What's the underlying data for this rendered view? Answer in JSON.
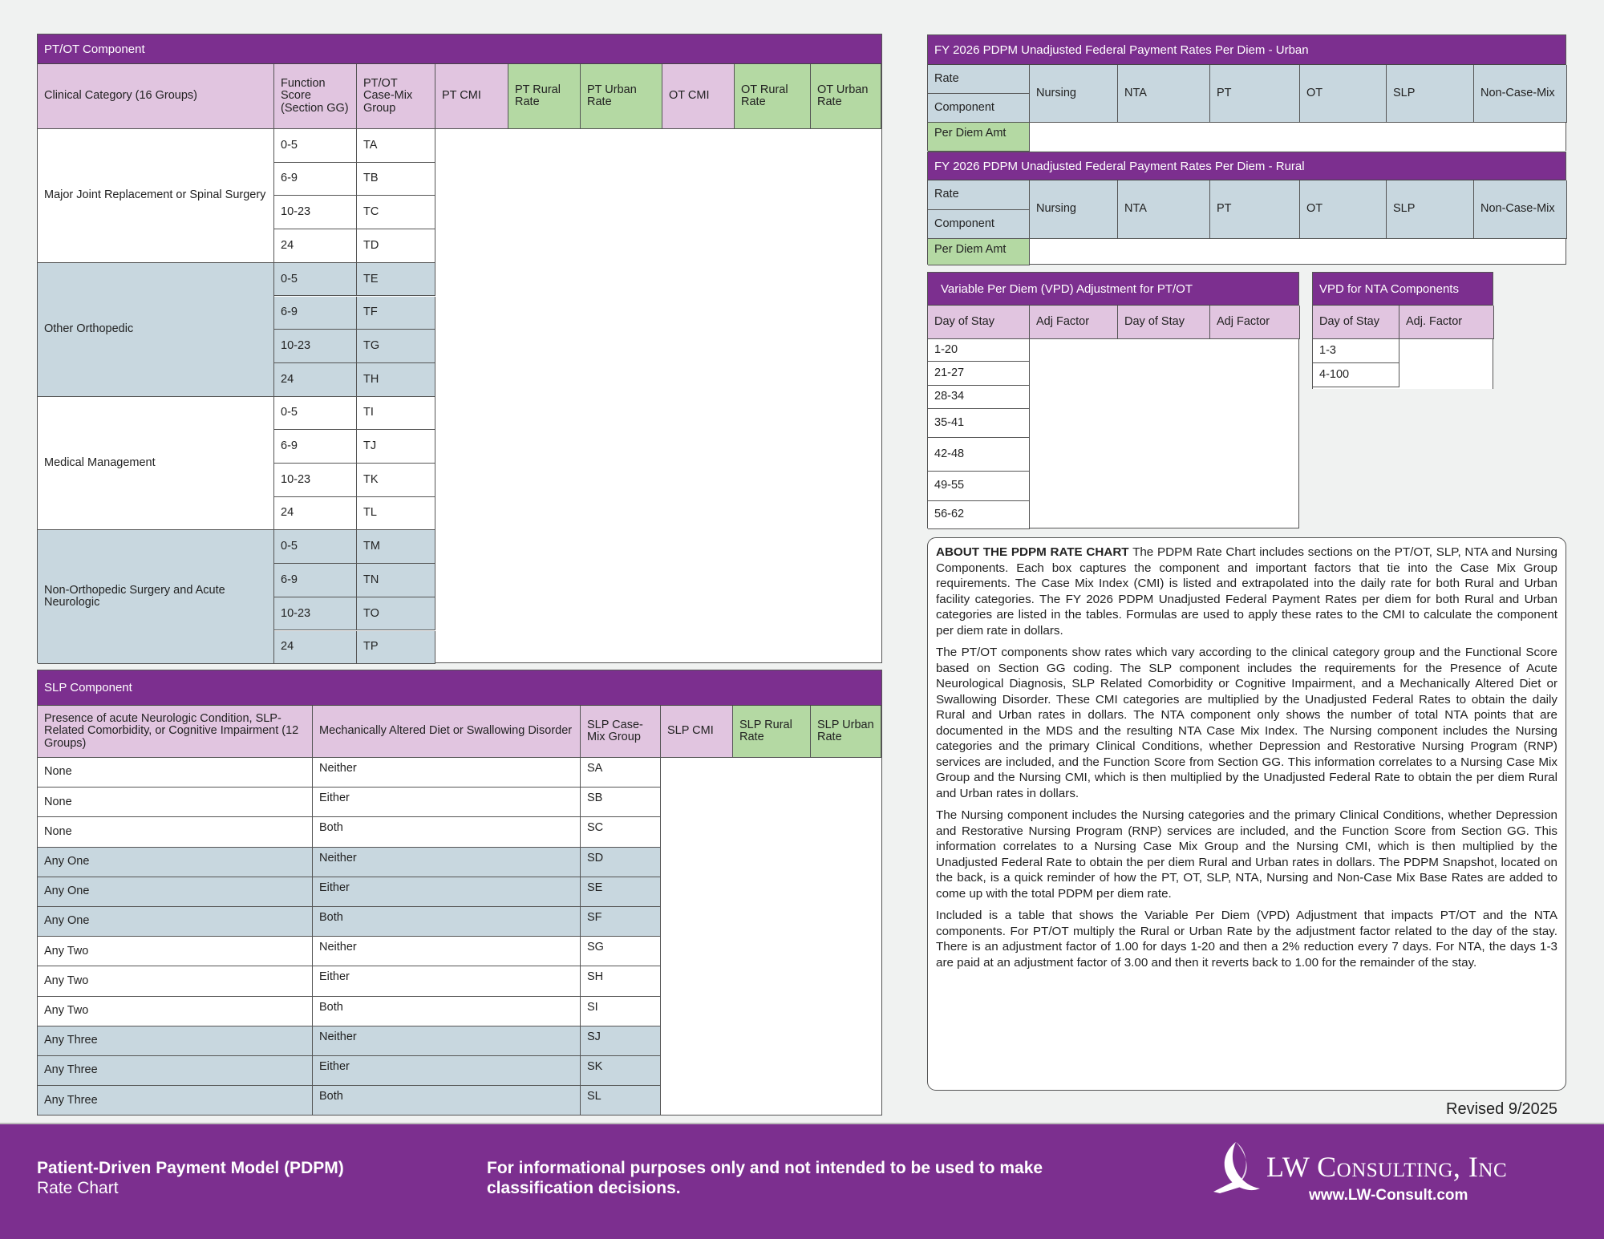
{
  "colors": {
    "purple": "#7c2f8f",
    "header_pink": "#e1c5e0",
    "header_green": "#b4d9a3",
    "shade_blue": "#c8d7df",
    "white": "#ffffff"
  },
  "ptot": {
    "title": "PT/OT Component",
    "headers": [
      "Clinical Category (16 Groups)",
      "Function Score (Section GG)",
      "PT/OT Case-Mix Group",
      "PT CMI",
      "PT Rural Rate",
      "PT Urban Rate",
      "OT CMI",
      "OT Rural Rate",
      "OT Urban Rate"
    ],
    "groups": [
      {
        "category": "Major Joint Replacement or Spinal Surgery",
        "shaded": false,
        "rows": [
          {
            "score": "0-5",
            "group": "TA"
          },
          {
            "score": "6-9",
            "group": "TB"
          },
          {
            "score": "10-23",
            "group": "TC"
          },
          {
            "score": "24",
            "group": "TD"
          }
        ]
      },
      {
        "category": "Other Orthopedic",
        "shaded": true,
        "rows": [
          {
            "score": "0-5",
            "group": "TE"
          },
          {
            "score": "6-9",
            "group": "TF"
          },
          {
            "score": "10-23",
            "group": "TG"
          },
          {
            "score": "24",
            "group": "TH"
          }
        ]
      },
      {
        "category": "Medical Management",
        "shaded": false,
        "rows": [
          {
            "score": "0-5",
            "group": "TI"
          },
          {
            "score": "6-9",
            "group": "TJ"
          },
          {
            "score": "10-23",
            "group": "TK"
          },
          {
            "score": "24",
            "group": "TL"
          }
        ]
      },
      {
        "category": "Non-Orthopedic Surgery and Acute Neurologic",
        "shaded": true,
        "rows": [
          {
            "score": "0-5",
            "group": "TM"
          },
          {
            "score": "6-9",
            "group": "TN"
          },
          {
            "score": "10-23",
            "group": "TO"
          },
          {
            "score": "24",
            "group": "TP"
          }
        ]
      }
    ]
  },
  "slp": {
    "title": "SLP Component",
    "headers": [
      "Presence of acute Neurologic Condition, SLP-Related Comorbidity, or Cognitive Impairment (12 Groups)",
      "Mechanically Altered Diet or Swallowing Disorder",
      "SLP Case-Mix Group",
      "SLP CMI",
      "SLP Rural Rate",
      "SLP Urban Rate"
    ],
    "rows": [
      {
        "presence": "None",
        "diet": "Neither",
        "group": "SA",
        "shaded": false
      },
      {
        "presence": "None",
        "diet": "Either",
        "group": "SB",
        "shaded": false
      },
      {
        "presence": "None",
        "diet": "Both",
        "group": "SC",
        "shaded": false
      },
      {
        "presence": "Any One",
        "diet": "Neither",
        "group": "SD",
        "shaded": true
      },
      {
        "presence": "Any One",
        "diet": "Either",
        "group": "SE",
        "shaded": true
      },
      {
        "presence": "Any One",
        "diet": "Both",
        "group": "SF",
        "shaded": true
      },
      {
        "presence": "Any Two",
        "diet": "Neither",
        "group": "SG",
        "shaded": false
      },
      {
        "presence": "Any Two",
        "diet": "Either",
        "group": "SH",
        "shaded": false
      },
      {
        "presence": "Any Two",
        "diet": "Both",
        "group": "SI",
        "shaded": false
      },
      {
        "presence": "Any Three",
        "diet": "Neither",
        "group": "SJ",
        "shaded": true
      },
      {
        "presence": "Any Three",
        "diet": "Either",
        "group": "SK",
        "shaded": true
      },
      {
        "presence": "Any Three",
        "diet": "Both",
        "group": "SL",
        "shaded": true
      }
    ]
  },
  "rates": [
    {
      "title": "FY 2026 PDPM Unadjusted Federal Payment Rates Per Diem - Urban",
      "rate_label": "Rate",
      "component_label": "Component",
      "per_diem_label": "Per Diem Amt",
      "columns": [
        "Nursing",
        "NTA",
        "PT",
        "OT",
        "SLP",
        "Non-Case-Mix"
      ]
    },
    {
      "title": "FY 2026 PDPM Unadjusted Federal Payment Rates Per Diem - Rural",
      "rate_label": "Rate",
      "component_label": "Component",
      "per_diem_label": "Per Diem Amt",
      "columns": [
        "Nursing",
        "NTA",
        "PT",
        "OT",
        "SLP",
        "Non-Case-Mix"
      ]
    }
  ],
  "vpd_ptot": {
    "title": "Variable Per Diem (VPD) Adjustment for PT/OT",
    "headers": [
      "Day of Stay",
      "Adj Factor",
      "Day of Stay",
      "Adj Factor"
    ],
    "days": [
      "1-20",
      "21-27",
      "28-34",
      "35-41",
      "42-48",
      "49-55",
      "56-62"
    ]
  },
  "vpd_nta": {
    "title": "VPD for NTA Components",
    "headers": [
      "Day of Stay",
      "Adj. Factor"
    ],
    "days": [
      "1-3",
      "4-100"
    ]
  },
  "about": {
    "heading": "ABOUT THE PDPM RATE CHART",
    "paragraphs": [
      "The PDPM Rate Chart includes sections on the PT/OT, SLP, NTA and Nursing Components. Each box captures the component and important factors that tie into the Case Mix Group requirements. The Case Mix Index (CMI) is listed and extrapolated into the daily rate for both Rural and Urban facility categories. The FY 2026 PDPM Unadjusted Federal Payment Rates per diem for both Rural and Urban categories are listed in the tables. Formulas are used to apply these rates to the CMI to calculate the component per diem rate in dollars.",
      "The PT/OT components show rates which vary according to the clinical category group and the Functional Score based on Section GG coding. The SLP component includes the requirements for the Presence of Acute Neurological Diagnosis, SLP Related Comorbidity or Cognitive Impairment, and a Mechanically Altered Diet or Swallowing Disorder. These CMI categories are multiplied by the Unadjusted Federal Rates to obtain the daily Rural and Urban rates in dollars. The NTA component only shows the number of total NTA points that are documented in the MDS and the resulting NTA Case Mix Index. The Nursing component includes the Nursing categories and the primary Clinical Conditions, whether Depression and Restorative Nursing Program (RNP) services are included, and the Function Score from Section GG. This information correlates to a Nursing Case Mix Group and the Nursing CMI, which is then multiplied by the Unadjusted Federal Rate to obtain the per diem Rural and Urban rates in dollars.",
      "The Nursing component includes the Nursing categories and the primary Clinical Conditions, whether Depression and Restorative Nursing Program (RNP) services are included, and the Function Score from Section GG. This information correlates to a Nursing Case Mix Group and the Nursing CMI, which is then multiplied by the Unadjusted Federal Rate to obtain the per diem Rural and Urban rates in dollars. The PDPM Snapshot, located on the back, is a quick reminder of how the PT, OT, SLP, NTA, Nursing and Non-Case Mix Base Rates are added to come up with the total PDPM per diem rate.",
      "Included is a table that shows the Variable Per Diem (VPD) Adjustment that impacts PT/OT and the NTA components. For PT/OT multiply the Rural or Urban Rate by the adjustment factor related to the day of the stay. There is an adjustment factor of 1.00 for days 1-20 and then a 2% reduction every 7 days. For NTA, the days 1-3 are paid at an adjustment factor of 3.00 and then it reverts back to 1.00 for the remainder of the stay."
    ]
  },
  "revised": "Revised 9/2025",
  "footer": {
    "title": "Patient-Driven Payment Model (PDPM)",
    "subtitle": "Rate Chart",
    "disclaimer": "For informational purposes only and not intended to be used to make classification decisions.",
    "logo_text": "LW Consulting, Inc",
    "url": "www.LW-Consult.com"
  }
}
